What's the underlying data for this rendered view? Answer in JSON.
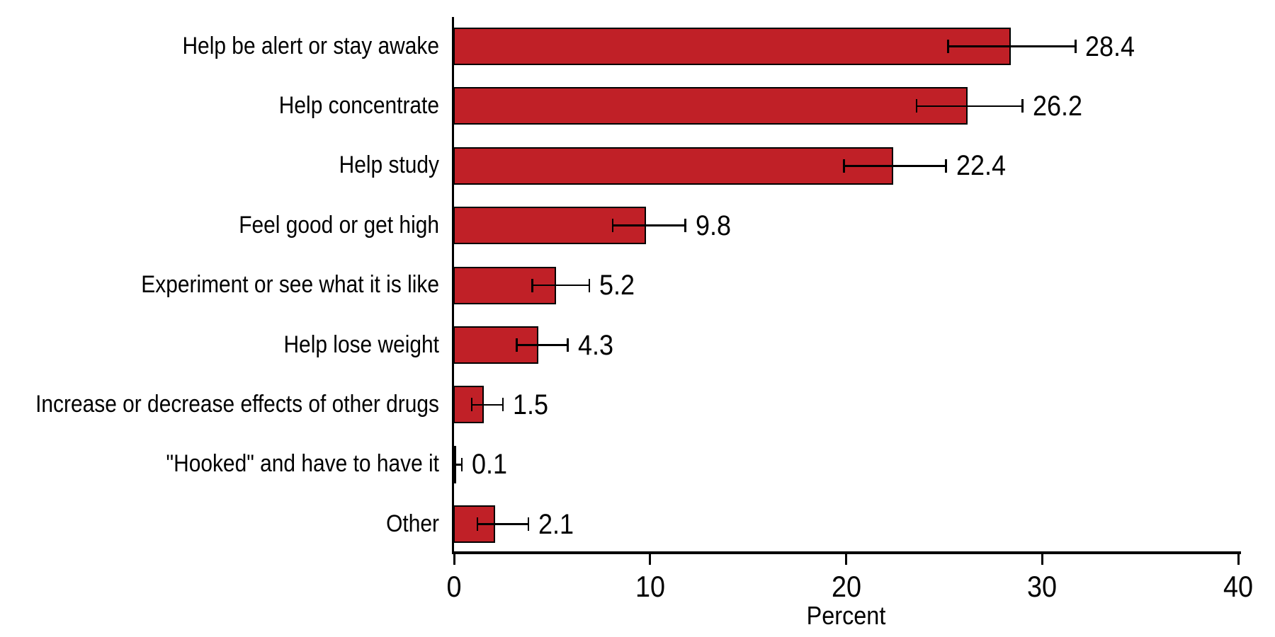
{
  "chart_data": {
    "type": "bar",
    "orientation": "horizontal",
    "title": "",
    "xlabel": "Percent",
    "ylabel": "",
    "xlim": [
      0,
      40
    ],
    "x_ticks": [
      0,
      10,
      20,
      30,
      40
    ],
    "grid": false,
    "legend": false,
    "categories": [
      "Help be alert or stay awake",
      "Help concentrate",
      "Help study",
      "Feel good or get high",
      "Experiment or see what it is like",
      "Help lose weight",
      "Increase or decrease effects of other drugs",
      "\"Hooked\" and have to have it",
      "Other"
    ],
    "values": [
      28.4,
      26.2,
      22.4,
      9.8,
      5.2,
      4.3,
      1.5,
      0.1,
      2.1
    ],
    "value_labels": [
      "28.4",
      "26.2",
      "22.4",
      "9.8",
      "5.2",
      "4.3",
      "1.5",
      "0.1",
      "2.1"
    ],
    "error_low": [
      25.2,
      23.6,
      19.9,
      8.1,
      4.0,
      3.2,
      0.9,
      0.0,
      1.2
    ],
    "error_high": [
      31.7,
      29.0,
      25.1,
      11.8,
      6.9,
      5.8,
      2.5,
      0.4,
      3.8
    ],
    "bar_color": "#c02027",
    "bar_border_color": "#000000",
    "axis_color": "#000000",
    "error_bar_color": "#000000"
  }
}
